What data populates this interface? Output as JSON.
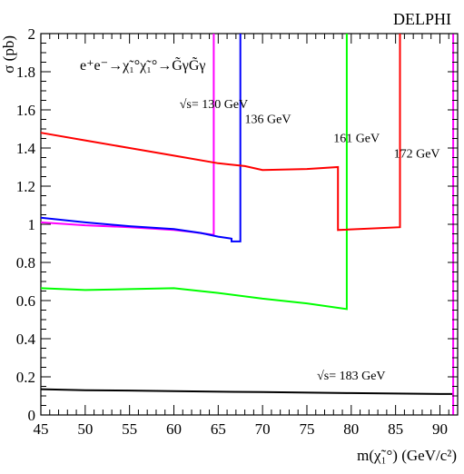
{
  "chart_data": {
    "type": "line",
    "header_label": "DELPHI",
    "reaction_label": "e⁺e⁻→χ̃₁°χ̃₁°→G̃γG̃γ",
    "xlabel": "m(χ̃₁°) (GeV/c²)",
    "ylabel": "σ (pb)",
    "xlim": [
      45,
      92
    ],
    "ylim": [
      0,
      2
    ],
    "x_ticks": [
      45,
      50,
      55,
      60,
      65,
      70,
      75,
      80,
      85,
      90
    ],
    "y_ticks": [
      0,
      0.2,
      0.4,
      0.6,
      0.8,
      1,
      1.2,
      1.4,
      1.6,
      1.8,
      2
    ],
    "x_tick_labels": [
      "45",
      "50",
      "55",
      "60",
      "65",
      "70",
      "75",
      "80",
      "85",
      "90"
    ],
    "y_tick_labels": [
      "0",
      "0.2",
      "0.4",
      "0.6",
      "0.8",
      "1",
      "1.2",
      "1.4",
      "1.6",
      "1.8",
      "2"
    ],
    "grid": false,
    "series": [
      {
        "color": "#ff00ff",
        "points": [
          [
            45,
            1.01
          ],
          [
            50,
            0.995
          ],
          [
            55,
            0.985
          ],
          [
            60,
            0.97
          ],
          [
            62,
            0.96
          ],
          [
            64.5,
            0.945
          ],
          [
            64.5,
            2.0
          ]
        ]
      },
      {
        "color": "#0000ff",
        "points": [
          [
            45,
            1.035
          ],
          [
            50,
            1.01
          ],
          [
            55,
            0.99
          ],
          [
            60,
            0.975
          ],
          [
            63,
            0.955
          ],
          [
            65,
            0.935
          ],
          [
            66.5,
            0.925
          ],
          [
            66.5,
            0.91
          ],
          [
            67.5,
            0.91
          ],
          [
            67.5,
            2.0
          ]
        ]
      },
      {
        "color": "#00ff00",
        "points": [
          [
            45,
            0.665
          ],
          [
            50,
            0.655
          ],
          [
            55,
            0.66
          ],
          [
            60,
            0.665
          ],
          [
            65,
            0.64
          ],
          [
            70,
            0.61
          ],
          [
            75,
            0.585
          ],
          [
            79.5,
            0.555
          ],
          [
            79.5,
            2.0
          ]
        ]
      },
      {
        "color": "#ff0000",
        "points": [
          [
            45,
            1.48
          ],
          [
            50,
            1.44
          ],
          [
            55,
            1.4
          ],
          [
            60,
            1.36
          ],
          [
            65,
            1.32
          ],
          [
            68,
            1.305
          ],
          [
            70,
            1.285
          ],
          [
            75,
            1.29
          ],
          [
            78.5,
            1.3
          ],
          [
            78.5,
            0.97
          ],
          [
            85.5,
            0.985
          ],
          [
            85.5,
            2.0
          ]
        ]
      },
      {
        "color": "#000000",
        "points": [
          [
            45,
            0.135
          ],
          [
            50,
            0.13
          ],
          [
            55,
            0.128
          ],
          [
            60,
            0.125
          ],
          [
            70,
            0.12
          ],
          [
            80,
            0.115
          ],
          [
            90,
            0.11
          ],
          [
            91.5,
            0.11
          ]
        ]
      },
      {
        "color": "#ff00ff",
        "points": [
          [
            91.5,
            0
          ],
          [
            91.5,
            2.0
          ]
        ]
      }
    ],
    "annotations": [
      {
        "text": "√s= 130 GeV",
        "x": 64.5,
        "y": 1.61
      },
      {
        "text": "136 GeV",
        "x": 70.6,
        "y": 1.53
      },
      {
        "text": "161 GeV",
        "x": 80.6,
        "y": 1.43
      },
      {
        "text": "172 GeV",
        "x": 87.4,
        "y": 1.35
      },
      {
        "text": "√s= 183 GeV",
        "x": 80.0,
        "y": 0.185
      }
    ]
  }
}
